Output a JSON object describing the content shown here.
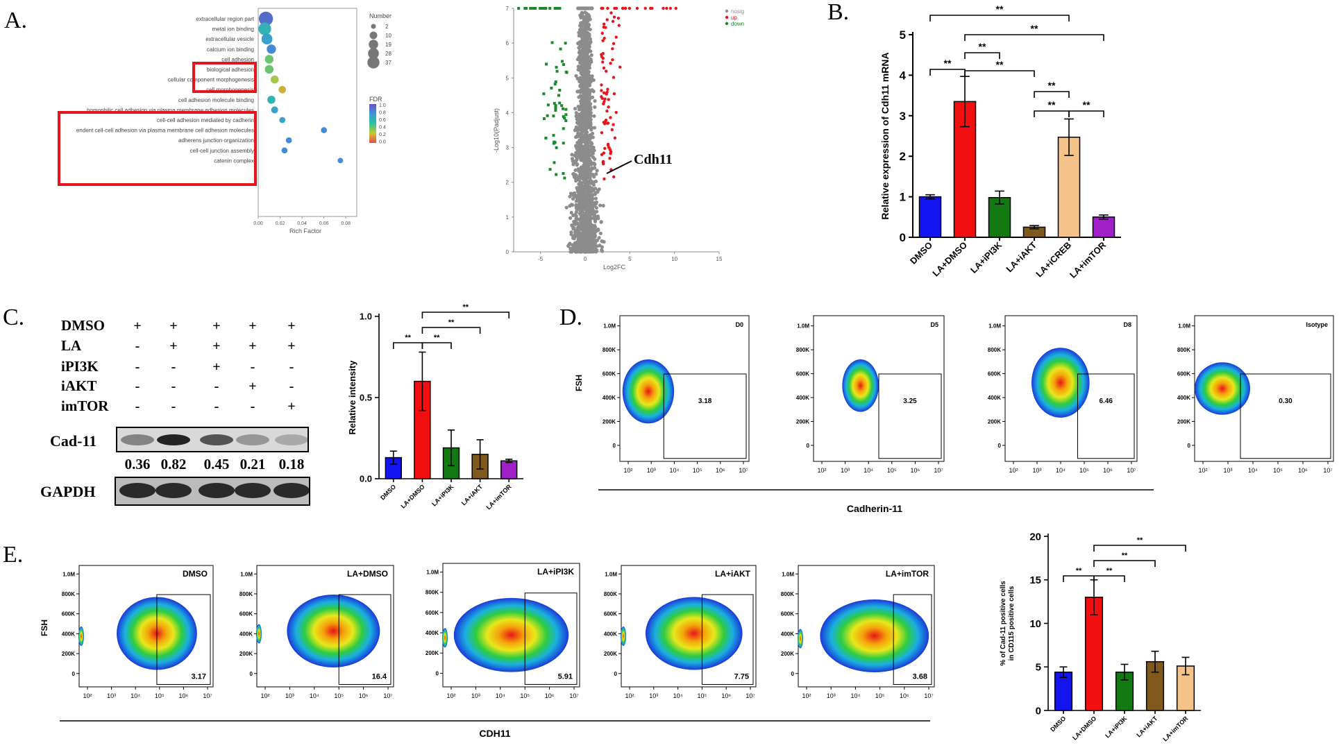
{
  "panels": {
    "A": "A.",
    "B": "B.",
    "C": "C.",
    "D": "D.",
    "E": "E."
  },
  "chart_data": [
    {
      "id": "A-go",
      "type": "scatter",
      "xlabel": "Rich Factor",
      "xticks": [
        "0.00",
        "0.02",
        "0.04",
        "0.06",
        "0.08"
      ],
      "xlim": [
        0,
        0.09
      ],
      "terms": [
        "extracellular region part",
        "metal ion binding",
        "extracellular vesicle",
        "calcium ion binding",
        "cell adhesion",
        "biological adhesion",
        "cellular component morphogenesis",
        "cell morphogenesis",
        "cell adhesion molecule binding",
        "homophilic cell adhesion via plasma membrane adhesion molecules",
        "cell-cell adhesion mediated by cadherin",
        "endent cell-cell adhesion via plasma membrane cell adhesion molecules",
        "adherens junction organization",
        "cell-cell junction assembly",
        "catenin complex"
      ],
      "rich_factor": [
        0.007,
        0.006,
        0.008,
        0.012,
        0.01,
        0.01,
        0.015,
        0.022,
        0.012,
        0.015,
        0.022,
        0.06,
        0.028,
        0.024,
        0.075
      ],
      "gene_number": [
        37,
        28,
        19,
        12,
        10,
        10,
        8,
        6,
        8,
        5,
        3,
        3,
        3,
        3,
        2
      ],
      "fdr": [
        0.9,
        0.6,
        0.7,
        0.8,
        0.4,
        0.4,
        0.3,
        0.2,
        0.6,
        0.7,
        0.7,
        0.8,
        0.8,
        0.8,
        0.8
      ],
      "size_legend_title": "Number",
      "size_legend": [
        "2",
        "10",
        "19",
        "28",
        "37"
      ],
      "color_legend_title": "FDR",
      "color_legend": [
        "1.0",
        "0.8",
        "0.6",
        "0.4",
        "0.2",
        "0.0"
      ],
      "colors": {
        "highlight_box": "#e8141b"
      }
    },
    {
      "id": "A-volcano",
      "type": "scatter",
      "xlabel": "Log2FC",
      "ylabel": "-Log10(Padjust)",
      "xlim": [
        -8,
        15
      ],
      "ylim": [
        0,
        7
      ],
      "xticks": [
        "-5",
        "0",
        "5",
        "10",
        "15"
      ],
      "yticks": [
        "0",
        "1",
        "2",
        "3",
        "4",
        "5",
        "6",
        "7"
      ],
      "legend": [
        "nosig",
        "up",
        "down"
      ],
      "annotation": "Cdh11",
      "colors": {
        "nosig": "#8c8c8c",
        "up": "#e8141b",
        "down": "#1a8a2a"
      }
    },
    {
      "id": "B",
      "type": "bar",
      "ylabel": "Relative expression of Cdh11 mRNA",
      "categories": [
        "DMSO",
        "LA+DMSO",
        "LA+iPI3K",
        "LA+iAKT",
        "LA+iCREB",
        "LA+imTOR"
      ],
      "values": [
        1.0,
        3.35,
        0.98,
        0.25,
        2.47,
        0.5
      ],
      "errors": [
        0.05,
        0.62,
        0.16,
        0.04,
        0.45,
        0.05
      ],
      "colors": [
        "#1414f0",
        "#f20f0f",
        "#137a13",
        "#805a1d",
        "#f5c38a",
        "#a020c8"
      ],
      "ylim": [
        0,
        5
      ],
      "yticks": [
        "0",
        "1",
        "2",
        "3",
        "4",
        "5"
      ],
      "sig": "**"
    },
    {
      "id": "C",
      "type": "bar",
      "ylabel": "Relative intensity",
      "categories": [
        "DMSO",
        "LA+DMSO",
        "LA+iPI3K",
        "LA+iAKT",
        "LA+imTOR"
      ],
      "values": [
        0.13,
        0.6,
        0.19,
        0.15,
        0.11
      ],
      "errors": [
        0.04,
        0.18,
        0.11,
        0.09,
        0.01
      ],
      "colors": [
        "#1414f0",
        "#f20f0f",
        "#137a13",
        "#805a1d",
        "#a020c8"
      ],
      "ylim": [
        0,
        1.0
      ],
      "yticks": [
        "0.0",
        "0.5",
        "1.0"
      ],
      "sig": "**"
    },
    {
      "id": "E",
      "type": "bar",
      "ylabel": "% of Cad-11 positive cells",
      "ylabel2": "in CD115 positive cells",
      "categories": [
        "DMSO",
        "LA+DMSO",
        "LA+iPI3K",
        "LA+iAKT",
        "LA+imTOR"
      ],
      "values": [
        4.4,
        13.0,
        4.4,
        5.6,
        5.1
      ],
      "errors": [
        0.6,
        2.0,
        0.9,
        1.2,
        1.0
      ],
      "colors": [
        "#1414f0",
        "#f20f0f",
        "#137a13",
        "#805a1d",
        "#f5c38a"
      ],
      "ylim": [
        0,
        20
      ],
      "yticks": [
        "0",
        "5",
        "10",
        "15",
        "20"
      ],
      "sig": "**"
    }
  ],
  "western": {
    "rows": [
      {
        "label": "DMSO",
        "marks": [
          "+",
          "+",
          "+",
          "+",
          "+"
        ]
      },
      {
        "label": "LA",
        "marks": [
          "-",
          "+",
          "+",
          "+",
          "+"
        ]
      },
      {
        "label": "iPI3K",
        "marks": [
          "-",
          "-",
          "+",
          "-",
          "-"
        ]
      },
      {
        "label": "iAKT",
        "marks": [
          "-",
          "-",
          "-",
          "+",
          "-"
        ]
      },
      {
        "label": "imTOR",
        "marks": [
          "-",
          "-",
          "-",
          "-",
          "+"
        ]
      }
    ],
    "blot1_label": "Cad-11",
    "quant": [
      "0.36",
      "0.82",
      "0.45",
      "0.21",
      "0.18"
    ],
    "blot2_label": "GAPDH"
  },
  "flow_D": {
    "ylabel": "FSH",
    "xlabel": "Cadherin-11",
    "yticks": [
      "1.0M",
      "800K",
      "600K",
      "400K",
      "200K",
      "0"
    ],
    "xticks": [
      "10²",
      "10³",
      "10⁴",
      "10⁵",
      "10⁶",
      "10⁷"
    ],
    "plots": [
      {
        "title": "D0",
        "pct": "3.18"
      },
      {
        "title": "D5",
        "pct": "3.25"
      },
      {
        "title": "D8",
        "pct": "6.46"
      },
      {
        "title": "Isotype",
        "pct": "0.30"
      }
    ]
  },
  "flow_E": {
    "ylabel": "FSH",
    "xlabel": "CDH11",
    "yticks": [
      "1.0M",
      "800K",
      "600K",
      "400K",
      "200K",
      "0"
    ],
    "xticks": [
      "10²",
      "10³",
      "10⁴",
      "10⁵",
      "10⁶",
      "10⁷"
    ],
    "plots": [
      {
        "title": "DMSO",
        "pct": "3.17"
      },
      {
        "title": "LA+DMSO",
        "pct": "16.4"
      },
      {
        "title": "LA+iPI3K",
        "pct": "5.91"
      },
      {
        "title": "LA+iAKT",
        "pct": "7.75"
      },
      {
        "title": "LA+imTOR",
        "pct": "3.68"
      }
    ]
  }
}
